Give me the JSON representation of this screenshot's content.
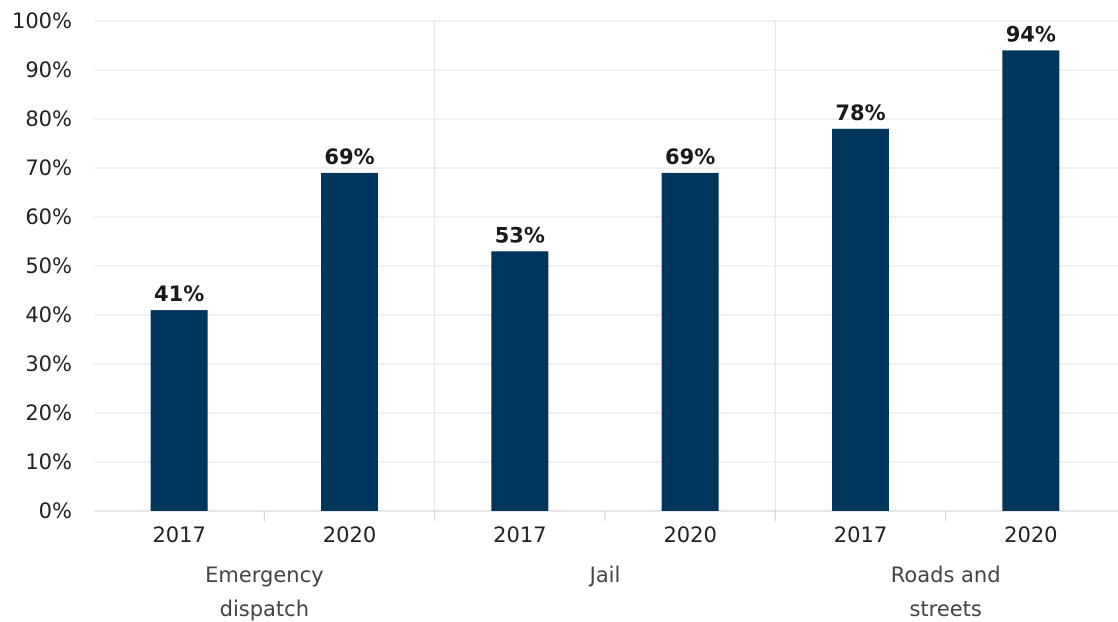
{
  "chart_data": {
    "type": "bar",
    "ylim": [
      0,
      100
    ],
    "y_tick_labels": [
      "0%",
      "10%",
      "20%",
      "30%",
      "40%",
      "50%",
      "60%",
      "70%",
      "80%",
      "90%",
      "100%"
    ],
    "grid": true,
    "groups": [
      {
        "label_lines": [
          "Emergency",
          "dispatch"
        ],
        "bars": [
          {
            "x": "2017",
            "value": 41,
            "label": "41%"
          },
          {
            "x": "2020",
            "value": 69,
            "label": "69%"
          }
        ]
      },
      {
        "label_lines": [
          "Jail"
        ],
        "bars": [
          {
            "x": "2017",
            "value": 53,
            "label": "53%"
          },
          {
            "x": "2020",
            "value": 69,
            "label": "69%"
          }
        ]
      },
      {
        "label_lines": [
          "Roads and",
          "streets"
        ],
        "bars": [
          {
            "x": "2017",
            "value": 78,
            "label": "78%"
          },
          {
            "x": "2020",
            "value": 94,
            "label": "94%"
          }
        ]
      }
    ],
    "colors": {
      "bar": "#00365c",
      "grid": "#e3e3e3",
      "axis": "#cfcfcf"
    }
  }
}
